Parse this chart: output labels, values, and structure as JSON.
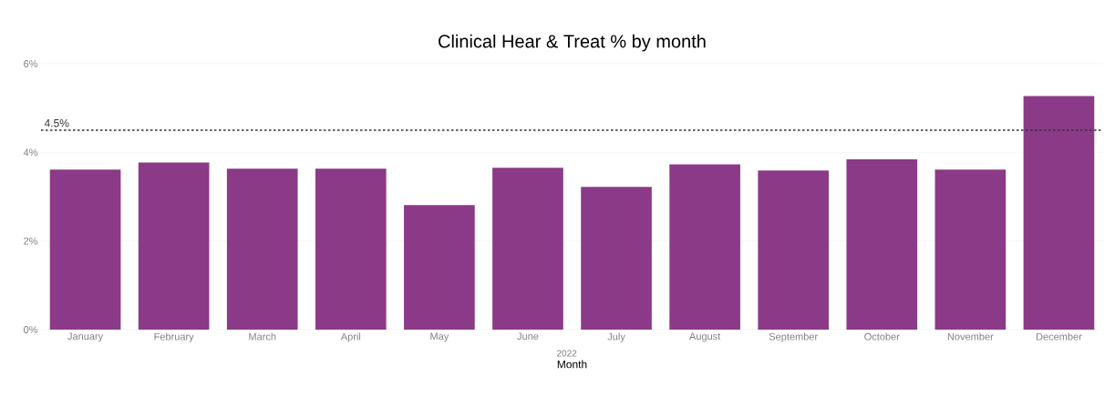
{
  "chart_data": {
    "type": "bar",
    "title": "Clinical Hear & Treat % by month",
    "xlabel": "Month",
    "categories": [
      "January",
      "February",
      "March",
      "April",
      "May",
      "June",
      "July",
      "August",
      "September",
      "October",
      "November",
      "December"
    ],
    "values": [
      3.61,
      3.77,
      3.63,
      3.63,
      2.81,
      3.65,
      3.22,
      3.73,
      3.59,
      3.84,
      3.61,
      5.27
    ],
    "color": "#8b3a87",
    "ylim": [
      0,
      6
    ],
    "yticks": [
      {
        "value": 0,
        "label": "0%"
      },
      {
        "value": 2,
        "label": "2%"
      },
      {
        "value": 4,
        "label": "4%"
      },
      {
        "value": 6,
        "label": "6%"
      }
    ],
    "grid": "y",
    "ref_lines": [
      {
        "axis": "y",
        "value": 4.5,
        "label": "4.5%",
        "color": "#333333",
        "line_style": "dotted"
      }
    ],
    "annotations": [
      "2022"
    ]
  }
}
